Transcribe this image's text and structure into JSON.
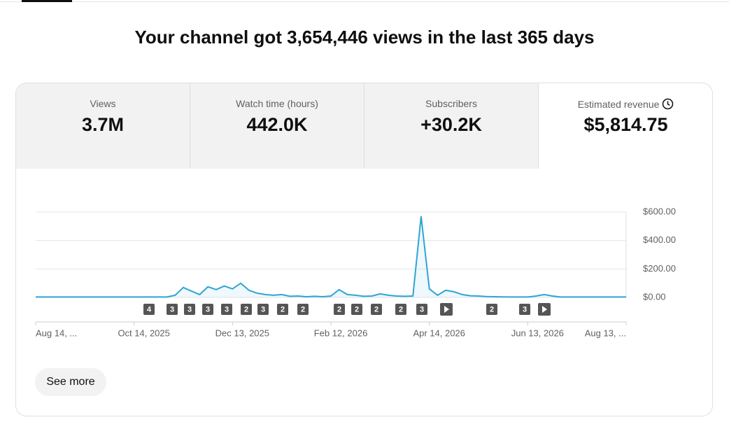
{
  "header": {
    "title": "Your channel got 3,654,446 views in the last 365 days"
  },
  "metrics": [
    {
      "label": "Views",
      "value": "3.7M"
    },
    {
      "label": "Watch time (hours)",
      "value": "442.0K"
    },
    {
      "label": "Subscribers",
      "value": "+30.2K"
    },
    {
      "label": "Estimated revenue",
      "value": "$5,814.75"
    }
  ],
  "chart_data": {
    "type": "line",
    "categories": [
      "Aug 14, ...",
      null,
      null,
      null,
      null,
      null,
      null,
      null,
      null,
      null,
      null,
      null,
      "Oct 14, 2025",
      null,
      null,
      null,
      null,
      null,
      null,
      null,
      null,
      null,
      null,
      null,
      "Dec 13, 2025",
      null,
      null,
      null,
      null,
      null,
      null,
      null,
      null,
      null,
      null,
      null,
      "Feb 12, 2026",
      null,
      null,
      null,
      null,
      null,
      null,
      null,
      null,
      null,
      null,
      null,
      "Apr 14, 2026",
      null,
      null,
      null,
      null,
      null,
      null,
      null,
      null,
      null,
      null,
      null,
      "Jun 13, 2026",
      null,
      null,
      null,
      null,
      null,
      null,
      null,
      null,
      null,
      null,
      null,
      "Aug 13, ..."
    ],
    "series": [
      {
        "name": "Estimated revenue",
        "color": "#2fa5d3",
        "values": [
          3,
          3,
          3,
          3,
          3,
          3,
          3,
          3,
          3,
          3,
          3,
          3,
          3,
          3,
          3,
          3,
          3,
          15,
          70,
          45,
          20,
          75,
          55,
          80,
          60,
          100,
          50,
          30,
          20,
          15,
          20,
          8,
          10,
          5,
          8,
          5,
          10,
          55,
          20,
          15,
          8,
          10,
          25,
          15,
          10,
          8,
          10,
          570,
          60,
          15,
          50,
          40,
          20,
          12,
          10,
          6,
          5,
          4,
          3,
          3,
          3,
          10,
          20,
          10,
          3,
          3,
          3,
          3,
          3,
          3,
          3,
          3,
          3
        ]
      }
    ],
    "ylim": [
      0,
      600
    ],
    "yticks": [
      {
        "value": 0,
        "label": "$0.00"
      },
      {
        "value": 200,
        "label": "$200.00"
      },
      {
        "value": 400,
        "label": "$400.00"
      },
      {
        "value": 600,
        "label": "$600.00"
      }
    ],
    "grid": true,
    "annotations": [
      "4",
      "3",
      "3",
      "3",
      "3",
      "2",
      "3",
      "2",
      "2",
      "2",
      "2",
      "2",
      "2",
      "3",
      "2",
      "3"
    ]
  },
  "button": "See more"
}
